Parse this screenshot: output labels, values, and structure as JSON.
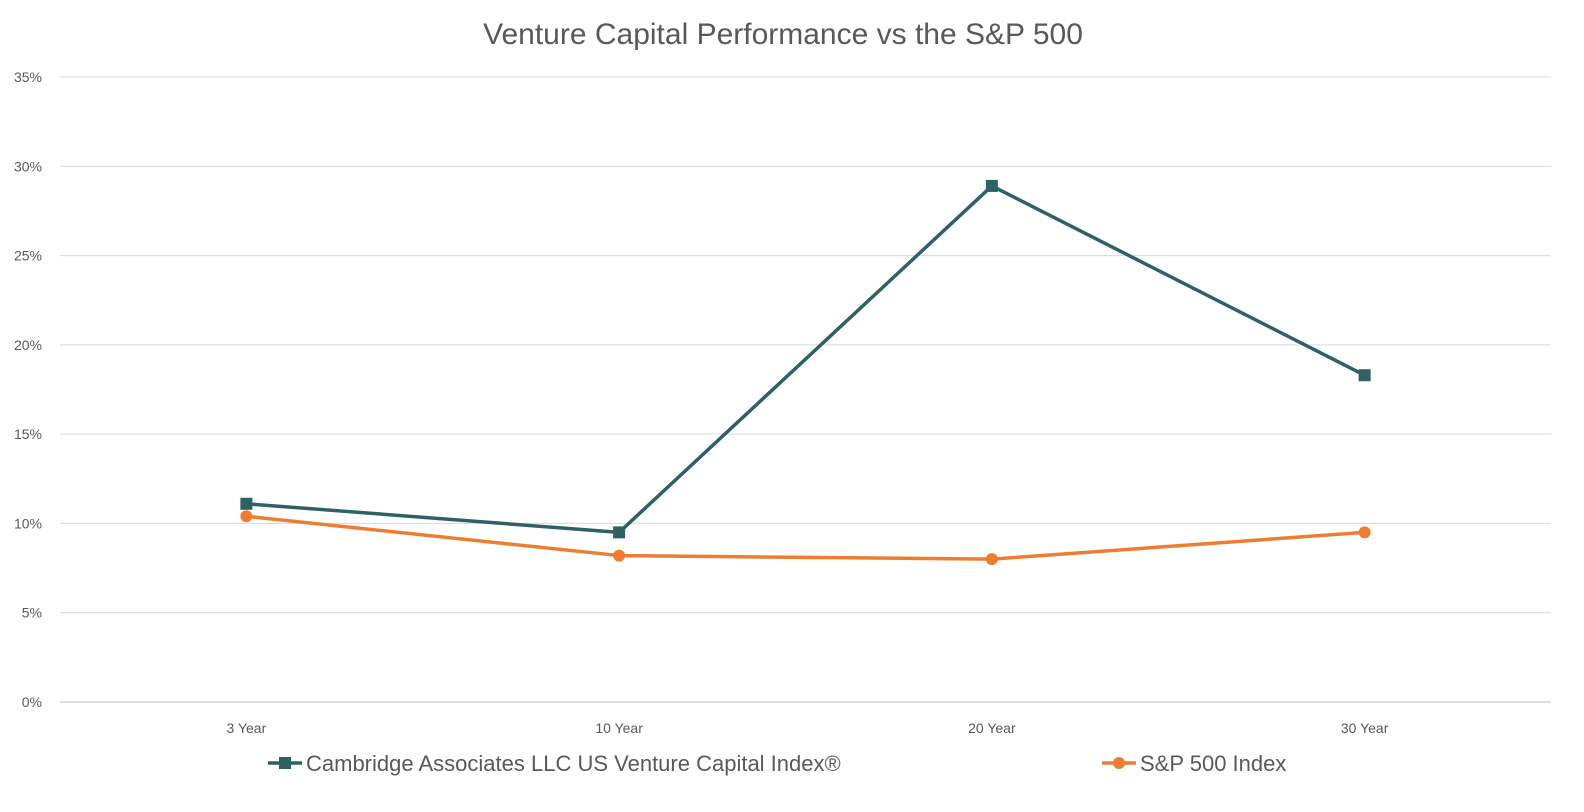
{
  "chart_data": {
    "type": "line",
    "title": "Venture Capital Performance vs the S&P 500",
    "xlabel": "",
    "ylabel": "",
    "categories": [
      "3 Year",
      "10 Year",
      "20 Year",
      "30 Year"
    ],
    "ylim": [
      0,
      35
    ],
    "yticks": [
      0,
      5,
      10,
      15,
      20,
      25,
      30,
      35
    ],
    "ytick_format": "%",
    "grid": true,
    "legend_position": "bottom",
    "series": [
      {
        "name": "Cambridge Associates LLC US Venture Capital Index®",
        "values": [
          11.1,
          9.5,
          28.9,
          18.3
        ],
        "color": "#2E6163",
        "marker": "square"
      },
      {
        "name": "S&P 500 Index",
        "values": [
          10.4,
          8.2,
          8.0,
          9.5
        ],
        "color": "#ED7D31",
        "marker": "circle"
      }
    ]
  }
}
